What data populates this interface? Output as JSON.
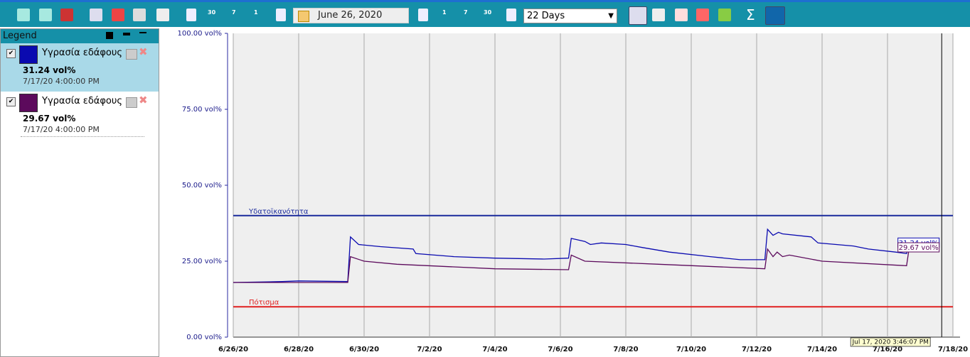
{
  "toolbar": {
    "back_labels": [
      "30",
      "7",
      "1"
    ],
    "forward_labels": [
      "1",
      "7",
      "30"
    ],
    "date": "June 26, 2020",
    "range": "22 Days",
    "sum": "Σ"
  },
  "legend": {
    "title": "Legend"
  },
  "chart_data": {
    "type": "line",
    "xlim": [
      "6/26/20 0:00",
      "7/18/20 0:00"
    ],
    "xticks": [
      "6/26/20",
      "6/28/20",
      "6/30/20",
      "7/2/20",
      "7/4/20",
      "7/6/20",
      "7/8/20",
      "7/10/20",
      "7/12/20",
      "7/14/20",
      "7/16/20",
      "7/18/20"
    ],
    "ylim": [
      0,
      100
    ],
    "yticks": [
      {
        "value": 0,
        "label": "0.00 vol%"
      },
      {
        "value": 25,
        "label": "25.00 vol%"
      },
      {
        "value": 50,
        "label": "50.00 vol%"
      },
      {
        "value": 75,
        "label": "75.00 vol%"
      },
      {
        "value": 100,
        "label": "100.00 vol%"
      }
    ],
    "grid": true,
    "reference_lines": [
      {
        "name": "Υδατοϊκανότητα",
        "value": 40,
        "color": "#1a2a9c"
      },
      {
        "name": "Πότισμα",
        "value": 10,
        "color": "#e02020"
      }
    ],
    "cursor": {
      "x": "7/17/20 15:46",
      "label": "Jul 17, 2020 3:46:07 PM"
    },
    "series": [
      {
        "name": "Υγρασία εδάφους",
        "color": "#0a0ab0",
        "last_value_label": "31.24 vol%",
        "last_time": "7/17/20 4:00:00 PM",
        "x": [
          "6/26/20 0:00",
          "6/27/20 12:00",
          "6/28/20 0:00",
          "6/29/20 12:00",
          "6/29/20 14:00",
          "6/29/20 20:00",
          "6/30/20 12:00",
          "7/1/20 12:00",
          "7/1/20 14:00",
          "7/2/20 18:00",
          "7/4/20 0:00",
          "7/5/20 12:00",
          "7/6/20 6:00",
          "7/6/20 8:00",
          "7/6/20 18:00",
          "7/6/20 22:00",
          "7/7/20 6:00",
          "7/8/20 0:00",
          "7/8/20 12:00",
          "7/9/20 8:00",
          "7/10/20 14:00",
          "7/11/20 12:00",
          "7/12/20 6:00",
          "7/12/20 8:00",
          "7/12/20 12:00",
          "7/12/20 16:00",
          "7/12/20 19:00",
          "7/13/20 16:00",
          "7/13/20 21:00",
          "7/14/20 23:00",
          "7/15/20 10:00",
          "7/16/20 6:00",
          "7/16/20 14:00",
          "7/16/20 16:00"
        ],
        "values": [
          18,
          18.3,
          18.5,
          18.3,
          33,
          30.5,
          29.8,
          29,
          27.5,
          26.5,
          26,
          25.7,
          26,
          32.5,
          31.5,
          30.5,
          31,
          30.5,
          29.5,
          28,
          26.5,
          25.5,
          25.5,
          35.5,
          33.5,
          34.5,
          34,
          33,
          31,
          30,
          29,
          28,
          27.5,
          31.24
        ]
      },
      {
        "name": "Υγρασία εδάφους",
        "color": "#5c0a5c",
        "last_value_label": "29.67 vol%",
        "last_time": "7/17/20 4:00:00 PM",
        "x": [
          "6/26/20 0:00",
          "6/29/20 12:00",
          "6/29/20 14:00",
          "6/30/20 0:00",
          "7/1/20 0:00",
          "7/4/20 0:00",
          "7/6/20 6:00",
          "7/6/20 8:00",
          "7/6/20 18:00",
          "7/9/20 0:00",
          "7/12/20 6:00",
          "7/12/20 8:00",
          "7/12/20 12:00",
          "7/12/20 15:00",
          "7/12/20 19:00",
          "7/13/20 0:00",
          "7/14/20 0:00",
          "7/16/20 14:00",
          "7/16/20 16:00"
        ],
        "values": [
          18,
          18,
          26.5,
          25,
          24,
          22.5,
          22.2,
          27,
          25,
          24,
          22.5,
          29,
          26.5,
          28,
          26.5,
          27,
          25,
          23.5,
          29.67
        ]
      }
    ]
  }
}
